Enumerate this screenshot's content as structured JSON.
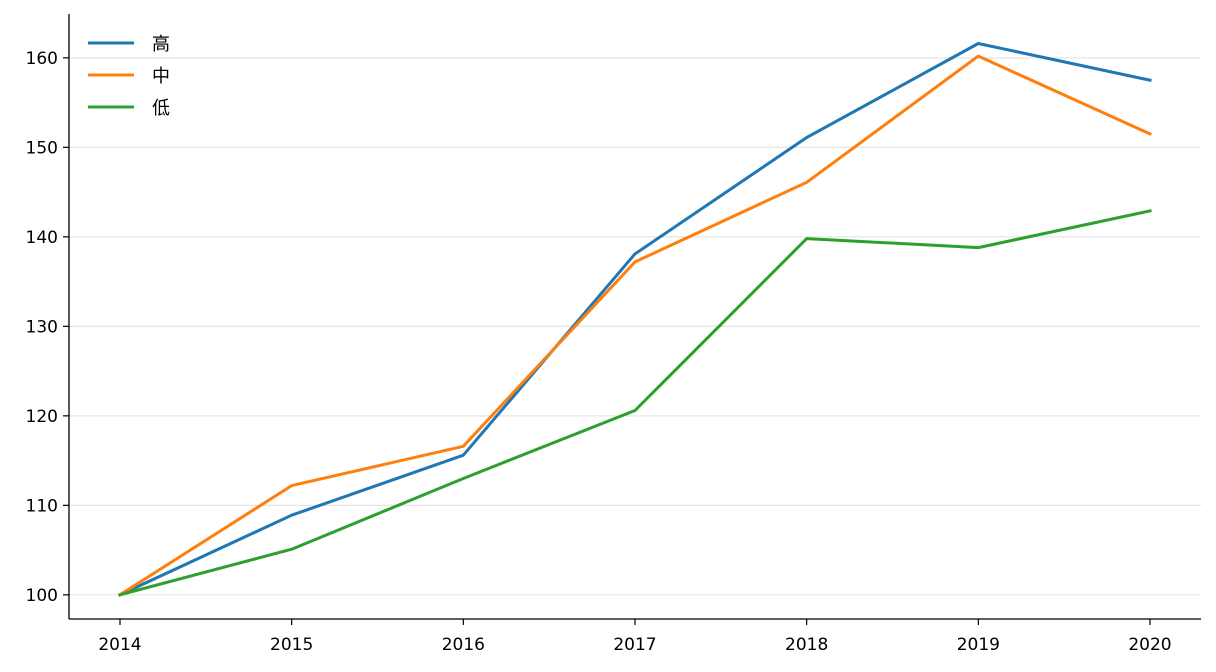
{
  "chart_data": {
    "type": "line",
    "x": [
      "2014",
      "2015",
      "2016",
      "2017",
      "2018",
      "2019",
      "2020"
    ],
    "series": [
      {
        "name": "高",
        "color": "#1f77b4",
        "values": [
          100,
          108.9,
          115.6,
          138.1,
          151.1,
          161.6,
          157.5
        ]
      },
      {
        "name": "中",
        "color": "#ff7f0e",
        "values": [
          100,
          112.2,
          116.6,
          137.2,
          146.1,
          160.2,
          151.5
        ]
      },
      {
        "name": "低",
        "color": "#2ca02c",
        "values": [
          100,
          105.1,
          113.0,
          120.6,
          139.8,
          138.8,
          142.9
        ]
      }
    ],
    "yticks": [
      100,
      110,
      120,
      130,
      140,
      150,
      160
    ],
    "ylim": [
      97.3,
      164.9
    ],
    "grid": "horizontal",
    "legend_position": "top-left",
    "title": "",
    "xlabel": "",
    "ylabel": ""
  }
}
